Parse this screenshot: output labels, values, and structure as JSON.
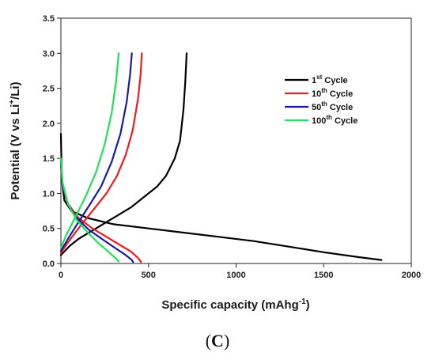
{
  "chart_data": {
    "type": "line",
    "xlabel_main": "Specific capacity (mAhg",
    "xlabel_sup": "-1",
    "xlabel_tail": ")",
    "ylabel_main": "Potential (V vs Li",
    "ylabel_sup": "+",
    "ylabel_tail": "/Li)",
    "xlim": [
      0,
      2000
    ],
    "ylim": [
      0,
      3.5
    ],
    "xticks": [
      0,
      500,
      1000,
      1500,
      2000
    ],
    "yticks": [
      0.0,
      0.5,
      1.0,
      1.5,
      2.0,
      2.5,
      3.0,
      3.5
    ],
    "ytick_labels": [
      "0.0",
      "0.5",
      "1.0",
      "1.5",
      "2.0",
      "2.5",
      "3.0",
      "3.5"
    ],
    "grid": false,
    "legend_position": "right",
    "series": [
      {
        "name_num": "1",
        "name_sup": "st",
        "name_tail": " Cycle",
        "color": "#000000",
        "discharge": [
          [
            0,
            1.85
          ],
          [
            5,
            1.2
          ],
          [
            20,
            0.9
          ],
          [
            60,
            0.75
          ],
          [
            150,
            0.65
          ],
          [
            300,
            0.56
          ],
          [
            500,
            0.5
          ],
          [
            700,
            0.44
          ],
          [
            900,
            0.38
          ],
          [
            1100,
            0.32
          ],
          [
            1300,
            0.24
          ],
          [
            1500,
            0.16
          ],
          [
            1700,
            0.09
          ],
          [
            1830,
            0.05
          ]
        ],
        "charge": [
          [
            0,
            0.12
          ],
          [
            50,
            0.25
          ],
          [
            100,
            0.35
          ],
          [
            200,
            0.5
          ],
          [
            300,
            0.65
          ],
          [
            400,
            0.8
          ],
          [
            500,
            1.0
          ],
          [
            550,
            1.1
          ],
          [
            600,
            1.25
          ],
          [
            650,
            1.5
          ],
          [
            680,
            1.75
          ],
          [
            700,
            2.2
          ],
          [
            710,
            2.6
          ],
          [
            718,
            3.0
          ]
        ]
      },
      {
        "name_num": "10",
        "name_sup": "th",
        "name_tail": " Cycle",
        "color": "#ee1c1c",
        "discharge": [
          [
            0,
            1.4
          ],
          [
            10,
            1.1
          ],
          [
            40,
            0.85
          ],
          [
            100,
            0.65
          ],
          [
            180,
            0.5
          ],
          [
            260,
            0.38
          ],
          [
            340,
            0.26
          ],
          [
            400,
            0.17
          ],
          [
            440,
            0.08
          ],
          [
            458,
            0.02
          ]
        ],
        "charge": [
          [
            0,
            0.15
          ],
          [
            40,
            0.3
          ],
          [
            100,
            0.5
          ],
          [
            180,
            0.75
          ],
          [
            260,
            1.0
          ],
          [
            320,
            1.25
          ],
          [
            370,
            1.55
          ],
          [
            410,
            1.9
          ],
          [
            440,
            2.35
          ],
          [
            455,
            2.7
          ],
          [
            462,
            3.0
          ]
        ]
      },
      {
        "name_num": "50",
        "name_sup": "th",
        "name_tail": " Cycle",
        "color": "#1a1aa0",
        "discharge": [
          [
            0,
            1.45
          ],
          [
            10,
            1.1
          ],
          [
            40,
            0.85
          ],
          [
            90,
            0.65
          ],
          [
            160,
            0.48
          ],
          [
            240,
            0.34
          ],
          [
            310,
            0.22
          ],
          [
            370,
            0.12
          ],
          [
            405,
            0.05
          ],
          [
            412,
            0.02
          ]
        ],
        "charge": [
          [
            0,
            0.18
          ],
          [
            40,
            0.35
          ],
          [
            90,
            0.55
          ],
          [
            160,
            0.82
          ],
          [
            230,
            1.1
          ],
          [
            290,
            1.45
          ],
          [
            340,
            1.85
          ],
          [
            375,
            2.3
          ],
          [
            395,
            2.7
          ],
          [
            405,
            3.0
          ]
        ]
      },
      {
        "name_num": "100",
        "name_sup": "th",
        "name_tail": " Cycle",
        "color": "#22e05a",
        "discharge": [
          [
            0,
            1.5
          ],
          [
            10,
            1.15
          ],
          [
            40,
            0.85
          ],
          [
            90,
            0.62
          ],
          [
            150,
            0.45
          ],
          [
            210,
            0.3
          ],
          [
            270,
            0.17
          ],
          [
            310,
            0.08
          ],
          [
            330,
            0.03
          ]
        ],
        "charge": [
          [
            0,
            0.22
          ],
          [
            30,
            0.4
          ],
          [
            80,
            0.65
          ],
          [
            140,
            0.95
          ],
          [
            200,
            1.3
          ],
          [
            250,
            1.7
          ],
          [
            290,
            2.15
          ],
          [
            315,
            2.6
          ],
          [
            330,
            3.0
          ]
        ]
      }
    ]
  },
  "panel_label_open": "(",
  "panel_label_letter": "C",
  "panel_label_close": ")"
}
